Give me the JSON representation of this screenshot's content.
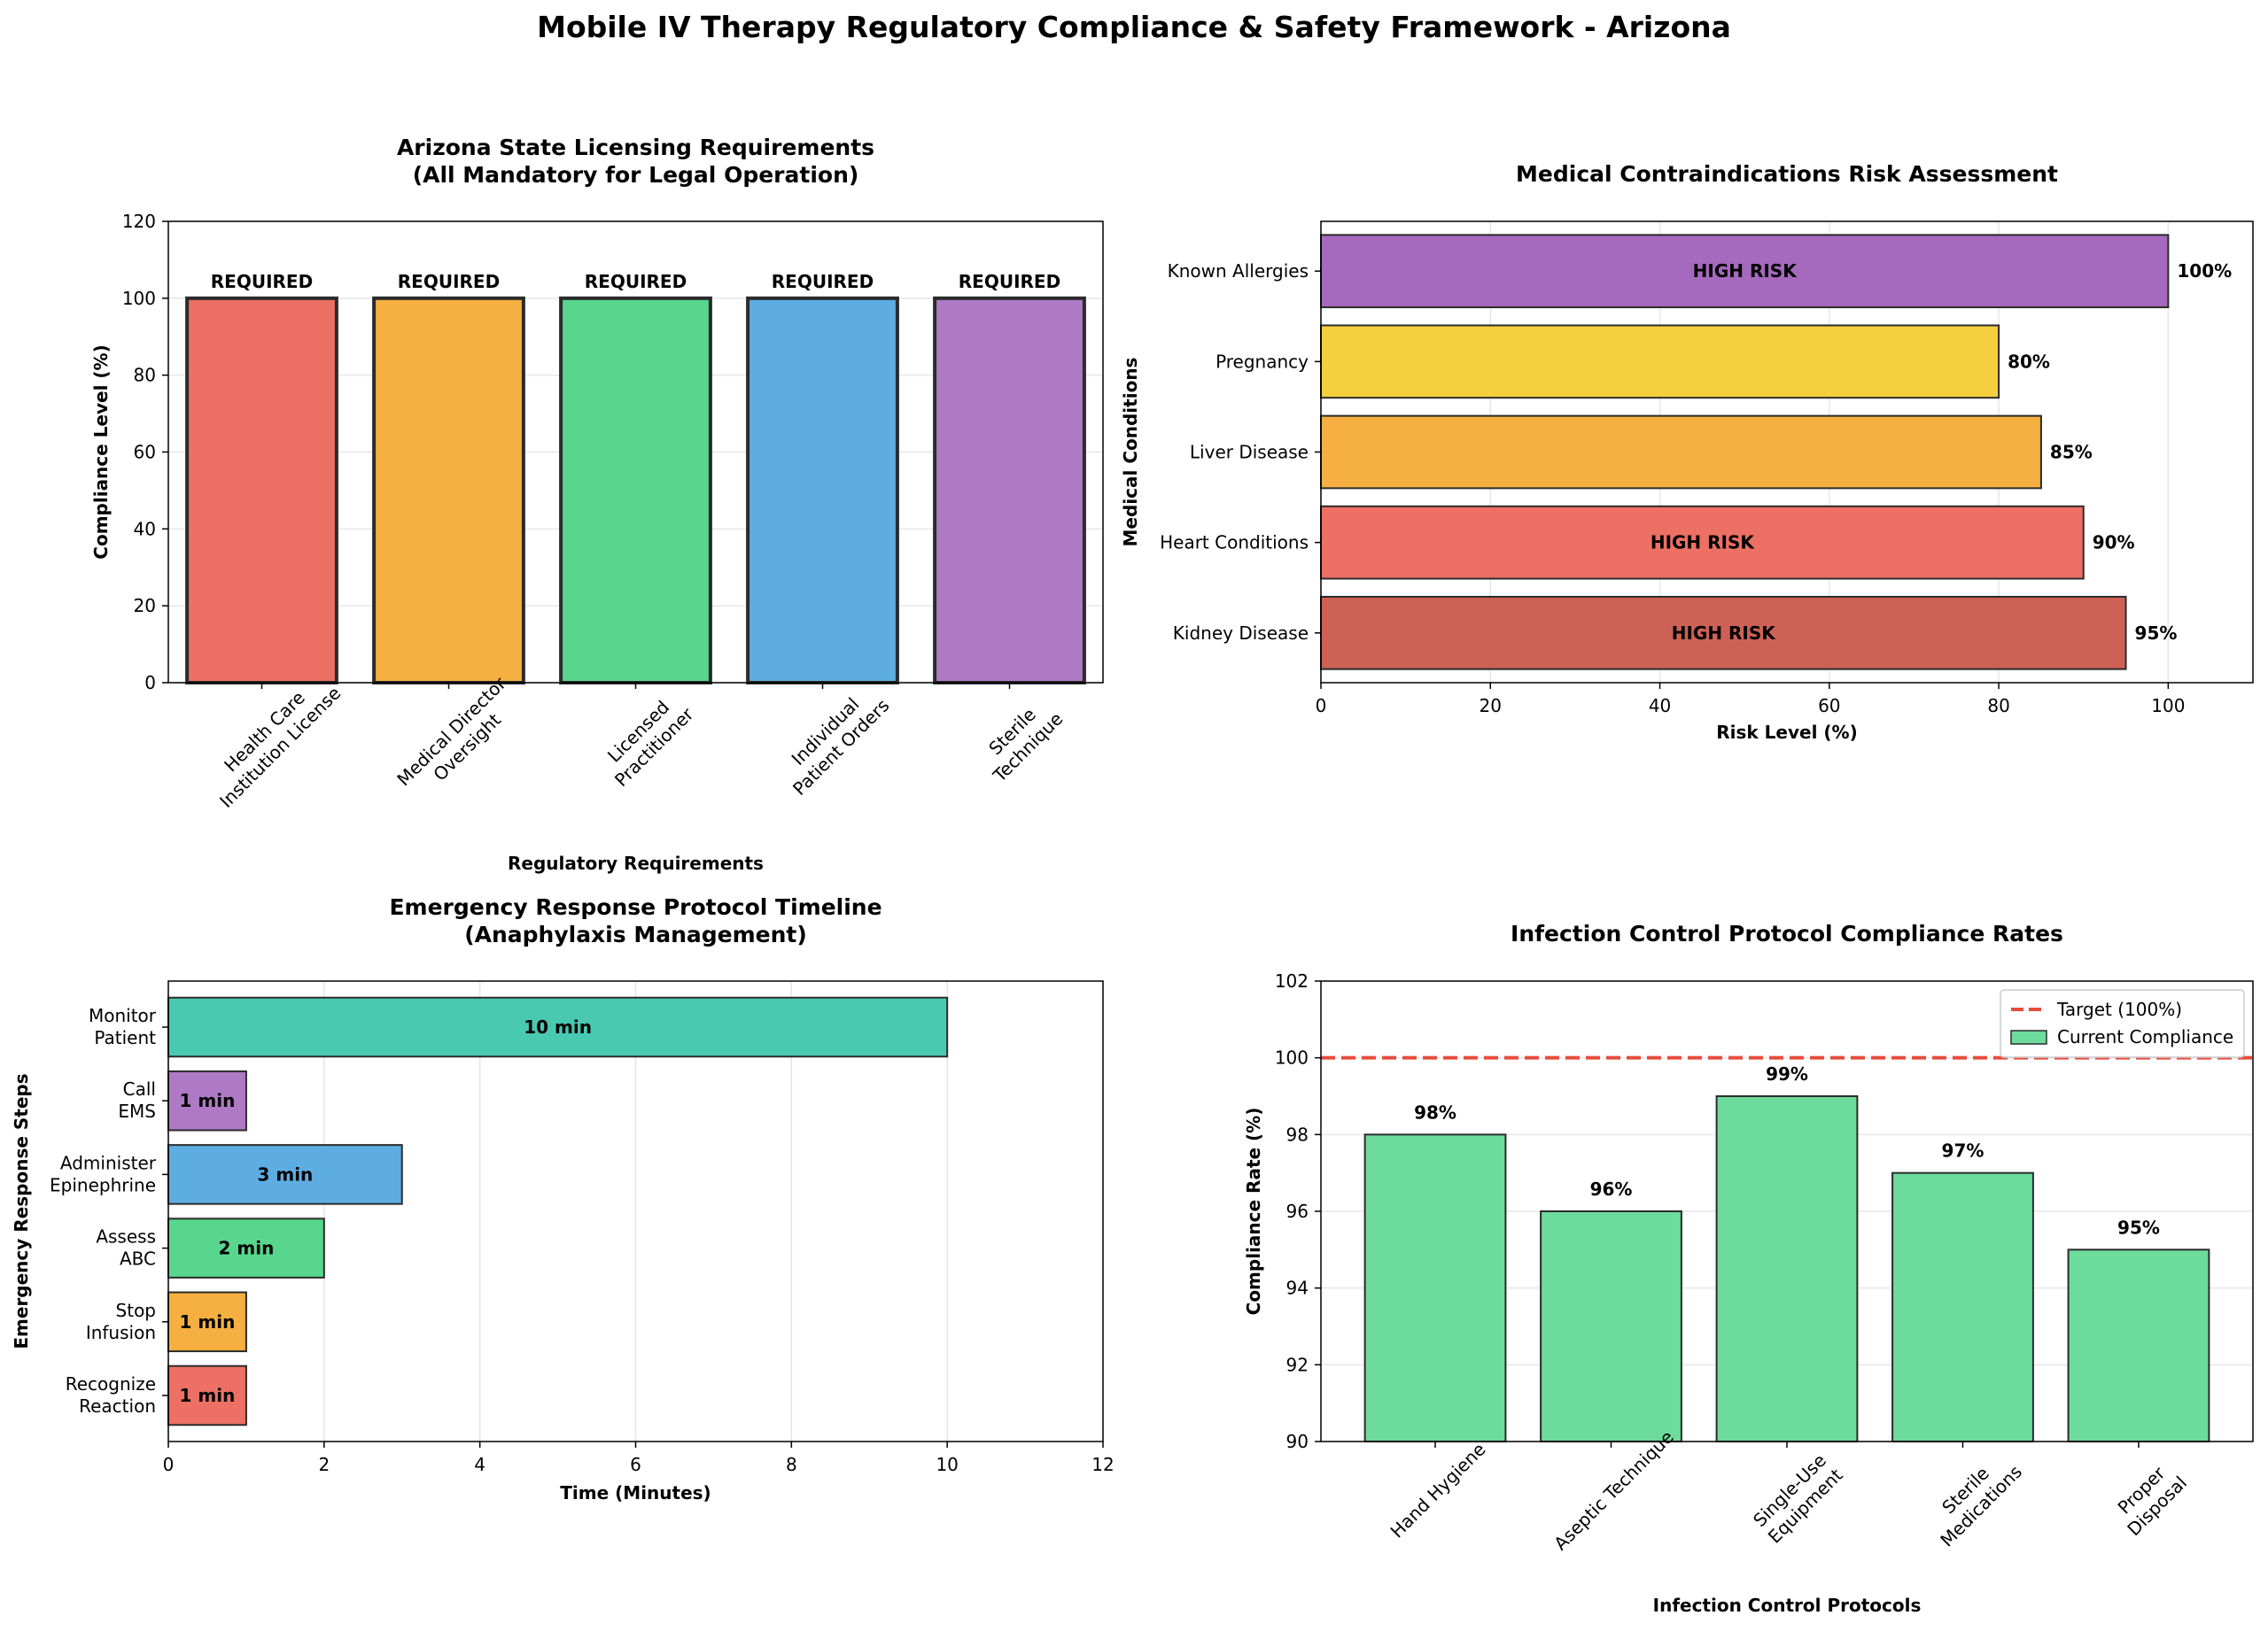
{
  "title": "Mobile IV Therapy Regulatory Compliance & Safety Framework - Arizona",
  "chart_data": [
    {
      "type": "bar",
      "title": [
        "Arizona State Licensing Requirements",
        "(All Mandatory for Legal Operation)"
      ],
      "xlabel": "Regulatory Requirements",
      "ylabel": "Compliance Level (%)",
      "ylim": [
        0,
        120
      ],
      "yticks": [
        "0",
        "20",
        "40",
        "60",
        "80",
        "100",
        "120"
      ],
      "categories": [
        [
          "Health Care",
          "Institution License"
        ],
        [
          "Medical Director",
          "Oversight"
        ],
        [
          "Licensed",
          "Practitioner"
        ],
        [
          "Individual",
          "Patient Orders"
        ],
        [
          "Sterile",
          "Technique"
        ]
      ],
      "values": [
        100,
        100,
        100,
        100,
        100
      ],
      "labels": [
        "REQUIRED",
        "REQUIRED",
        "REQUIRED",
        "REQUIRED",
        "REQUIRED"
      ],
      "colors": [
        "#e74c3c",
        "#f39c12",
        "#2ecc71",
        "#3498db",
        "#9b59b6"
      ],
      "grid": true
    },
    {
      "type": "bar",
      "orientation": "horizontal",
      "title": [
        "Medical Contraindications Risk Assessment"
      ],
      "xlabel": "Risk Level (%)",
      "ylabel": "Medical Conditions",
      "xlim": [
        0,
        110
      ],
      "xticks": [
        "0",
        "20",
        "40",
        "60",
        "80",
        "100"
      ],
      "categories": [
        "Kidney Disease",
        "Heart Conditions",
        "Liver Disease",
        "Pregnancy",
        "Known Allergies"
      ],
      "values": [
        95,
        90,
        85,
        80,
        100
      ],
      "value_labels": [
        "95%",
        "90%",
        "85%",
        "80%",
        "100%"
      ],
      "inner_labels": [
        "HIGH RISK",
        "HIGH RISK",
        "",
        "",
        "HIGH RISK"
      ],
      "colors": [
        "#c0392b",
        "#e74c3c",
        "#f39c12",
        "#f1c40f",
        "#8e44ad"
      ],
      "grid": true
    },
    {
      "type": "bar",
      "orientation": "horizontal",
      "title": [
        "Emergency Response Protocol Timeline",
        "(Anaphylaxis Management)"
      ],
      "xlabel": "Time (Minutes)",
      "ylabel": "Emergency Response Steps",
      "xlim": [
        0,
        12
      ],
      "xticks": [
        "0",
        "2",
        "4",
        "6",
        "8",
        "10",
        "12"
      ],
      "categories": [
        [
          "Recognize",
          "Reaction"
        ],
        [
          "Stop",
          "Infusion"
        ],
        [
          "Assess",
          "ABC"
        ],
        [
          "Administer",
          "Epinephrine"
        ],
        [
          "Call",
          "EMS"
        ],
        [
          "Monitor",
          "Patient"
        ]
      ],
      "values": [
        1,
        1,
        2,
        3,
        1,
        10
      ],
      "inner_labels": [
        "1 min",
        "1 min",
        "2 min",
        "3 min",
        "1 min",
        "10 min"
      ],
      "colors": [
        "#e74c3c",
        "#f39c12",
        "#2ecc71",
        "#3498db",
        "#9b59b6",
        "#1abc9c"
      ],
      "grid": true
    },
    {
      "type": "bar",
      "title": [
        "Infection Control Protocol Compliance Rates"
      ],
      "xlabel": "Infection Control Protocols",
      "ylabel": "Compliance Rate (%)",
      "ylim": [
        90,
        102
      ],
      "yticks": [
        "90",
        "92",
        "94",
        "96",
        "98",
        "100",
        "102"
      ],
      "categories": [
        [
          "Hand Hygiene"
        ],
        [
          "Aseptic Technique"
        ],
        [
          "Single-Use",
          "Equipment"
        ],
        [
          "Sterile",
          "Medications"
        ],
        [
          "Proper",
          "Disposal"
        ]
      ],
      "values": [
        98,
        96,
        99,
        97,
        95
      ],
      "value_labels": [
        "98%",
        "96%",
        "99%",
        "97%",
        "95%"
      ],
      "target": 100,
      "legend": [
        "Target (100%)",
        "Current Compliance"
      ],
      "legend_position": "top-right",
      "colors": [
        "#2ecc71",
        "#e74c3c"
      ],
      "grid": true
    }
  ]
}
